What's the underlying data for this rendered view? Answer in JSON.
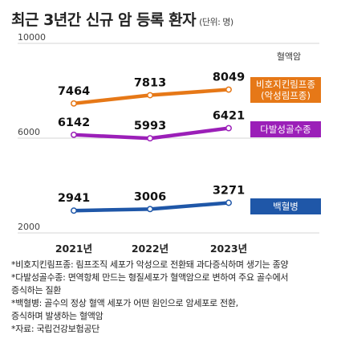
{
  "title": "최근 3년간 신규 암 등록 환자",
  "unit": "(단위: 명)",
  "legend_title": "혈액암",
  "notes": [
    "*비호지킨림프종: 림프조직 세포가 악성으로 전환돼 과다증식하며 생기는 종양",
    "*다발성골수종: 면역항체 만드는 형질세포가 혈액암으로 변하여 주요 골수에서",
    "증식하는 질환",
    "*백혈병: 골수의 정상 혈액 세포가 어떤 원인으로 암세포로 전환,",
    "증식하며 발생하는 혈액암",
    "*자료: 국립건강보험공단"
  ],
  "chart_data": {
    "type": "line",
    "title": "최근 3년간 신규 암 등록 환자",
    "unit": "(단위: 명)",
    "categories": [
      "2021년",
      "2022년",
      "2023년"
    ],
    "yticks": [
      "10000",
      "6000",
      "2000"
    ],
    "ylim": [
      2000,
      10000
    ],
    "grid": true,
    "series": [
      {
        "name": "비호지킨림프종\n(악성림프종)",
        "label_lines": [
          "비호지킨림프종",
          "(악성림프종)"
        ],
        "values": [
          7464,
          7813,
          8049
        ],
        "color": "#e67817"
      },
      {
        "name": "다발성골수종",
        "label_lines": [
          "다발성골수종"
        ],
        "values": [
          6142,
          5993,
          6421
        ],
        "color": "#9b1fb8"
      },
      {
        "name": "백혈병",
        "label_lines": [
          "백혈병"
        ],
        "values": [
          2941,
          3006,
          3271
        ],
        "color": "#1f57a8"
      }
    ],
    "value_labels": [
      [
        "7464",
        "7813",
        "8049"
      ],
      [
        "6142",
        "5993",
        "6421"
      ],
      [
        "2941",
        "3006",
        "3271"
      ]
    ]
  }
}
